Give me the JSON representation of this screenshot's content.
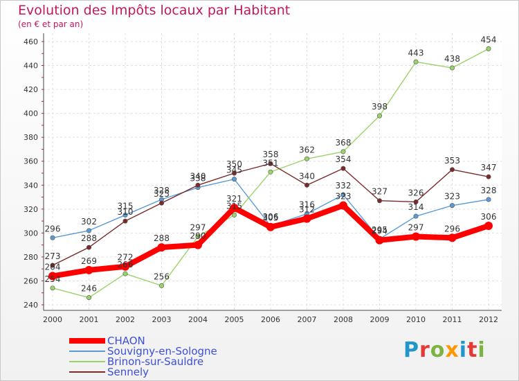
{
  "header": {
    "title": "Evolution des Impôts locaux par Habitant",
    "subtitle": "(en € et par an)"
  },
  "logo": {
    "letters": [
      "P",
      "r",
      "o",
      "x",
      "i",
      "t",
      "i"
    ],
    "colors": [
      "#2196c9",
      "#e53935",
      "#7cb342",
      "#ff9800",
      "#2196c9",
      "#e53935",
      "#7cb342"
    ]
  },
  "chart_data": {
    "type": "line",
    "x": [
      "2000",
      "2001",
      "2002",
      "2003",
      "2004",
      "2005",
      "2006",
      "2007",
      "2008",
      "2009",
      "2010",
      "2011",
      "2012"
    ],
    "ylim": [
      240,
      460
    ],
    "yticks": [
      240,
      260,
      280,
      300,
      320,
      340,
      360,
      380,
      400,
      420,
      440,
      460
    ],
    "grid": true,
    "legend_position": "bottom-left",
    "series": [
      {
        "name": "CHAON",
        "color": "#ff0000",
        "values": [
          264,
          269,
          272,
          288,
          290,
          321,
          305,
          312,
          323,
          294,
          297,
          296,
          306
        ]
      },
      {
        "name": "Souvigny-en-Sologne",
        "color": "#5b9bd5",
        "values": [
          296,
          302,
          315,
          328,
          338,
          345,
          306,
          316,
          332,
          295,
          314,
          323,
          328
        ]
      },
      {
        "name": "Brinon-sur-Sauldre",
        "color": "#9ad36a",
        "values": [
          254,
          246,
          266,
          256,
          297,
          315,
          351,
          362,
          368,
          398,
          443,
          438,
          454
        ]
      },
      {
        "name": "Sennely",
        "color": "#7b2a2a",
        "values": [
          273,
          288,
          310,
          325,
          340,
          350,
          358,
          340,
          354,
          327,
          326,
          353,
          347
        ]
      }
    ]
  }
}
